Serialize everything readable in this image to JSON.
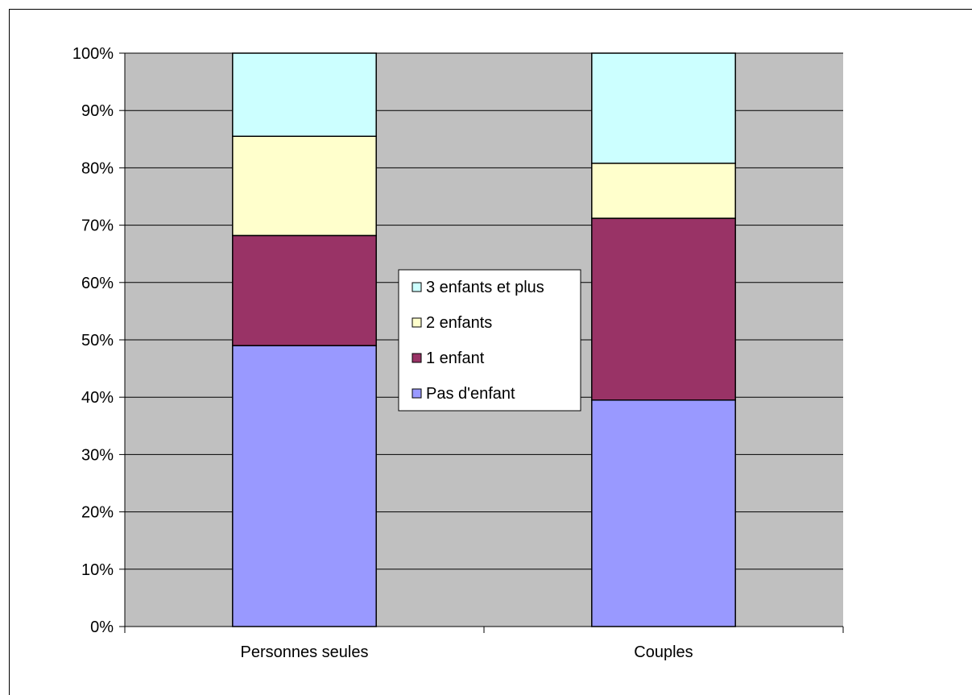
{
  "chart_data": {
    "type": "bar",
    "stacked": true,
    "percent_stacked": true,
    "categories": [
      "Personnes seules",
      "Couples"
    ],
    "series": [
      {
        "name": "Pas d'enfant",
        "values": [
          49,
          39.5
        ],
        "color": "#9999ff"
      },
      {
        "name": "1 enfant",
        "values": [
          19.2,
          31.7
        ],
        "color": "#993366"
      },
      {
        "name": "2 enfants",
        "values": [
          17.3,
          9.6
        ],
        "color": "#ffffcc"
      },
      {
        "name": "3 enfants et plus",
        "values": [
          14.5,
          19.2
        ],
        "color": "#ccffff"
      }
    ],
    "ylim": [
      0,
      100
    ],
    "yticks": [
      "0%",
      "10%",
      "20%",
      "30%",
      "40%",
      "50%",
      "60%",
      "70%",
      "80%",
      "90%",
      "100%"
    ],
    "plot_background": "#c0c0c0",
    "grid": true,
    "legend_position": "center",
    "legend_order": [
      "3 enfants et plus",
      "2 enfants",
      "1 enfant",
      "Pas d'enfant"
    ]
  }
}
